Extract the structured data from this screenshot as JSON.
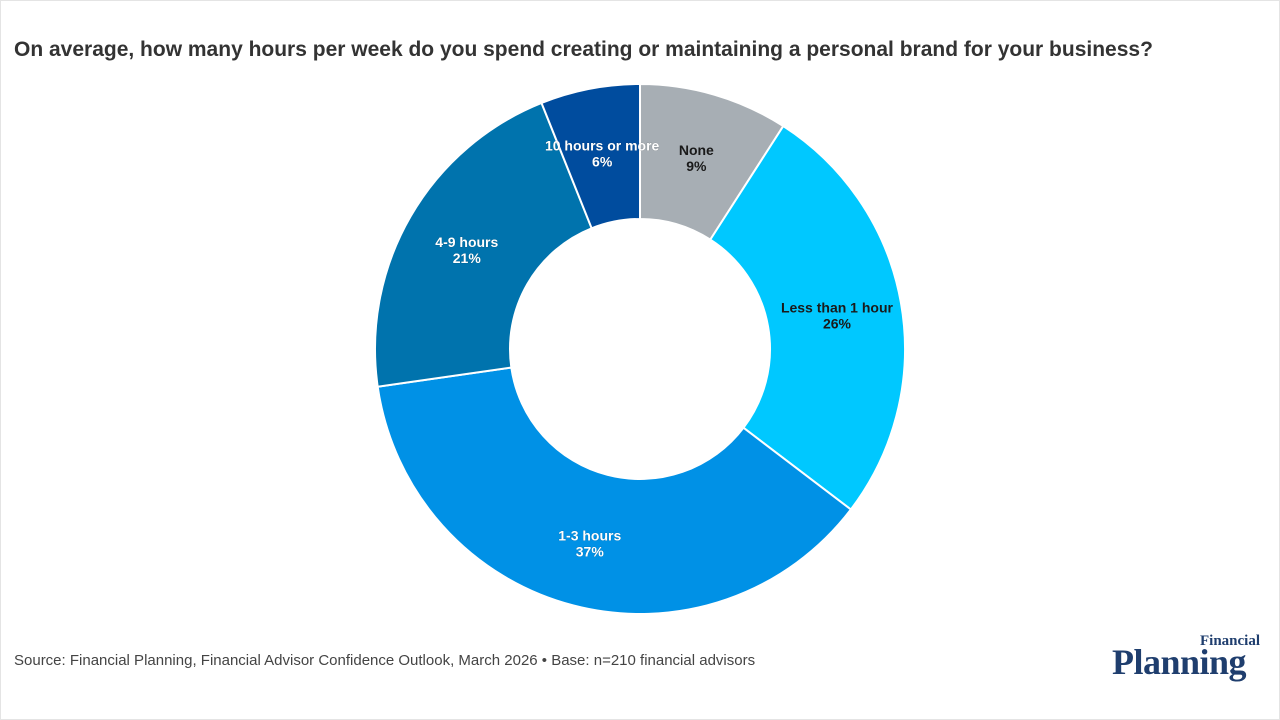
{
  "chart_data": {
    "type": "pie",
    "title": "On average, how many hours per week do you spend creating or maintaining a personal brand for your business?",
    "categories": [
      "None",
      "Less than 1 hour",
      "1-3 hours",
      "4-9 hours",
      "10 hours or more"
    ],
    "values": [
      9,
      26,
      37,
      21,
      6
    ],
    "labels": [
      "9%",
      "26%",
      "37%",
      "21%",
      "6%"
    ],
    "colors": [
      "#a7aeb4",
      "#00c8ff",
      "#0091e6",
      "#0073ad",
      "#004c9e"
    ],
    "label_colors": [
      "#1a1a1a",
      "#1a1a1a",
      "#ffffff",
      "#ffffff",
      "#ffffff"
    ],
    "donut": true
  },
  "footer": {
    "source": "Source: Financial Planning, Financial Advisor Confidence Outlook, March 2026 • Base: n=210 financial advisors"
  },
  "logo": {
    "line1": "Financial",
    "line2": "Planning"
  }
}
